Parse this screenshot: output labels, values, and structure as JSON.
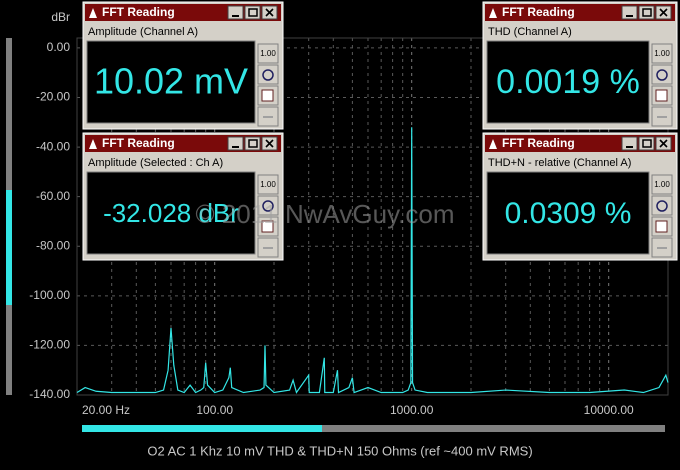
{
  "chart_data": {
    "type": "line",
    "title": "O2 AC 1 Khz 10 mV THD & THD+N 150 Ohms (ref ~400 mV RMS)",
    "y_label": "dBr",
    "x_scale": "log",
    "grid": true,
    "xlim": [
      20,
      20000
    ],
    "ylim": [
      -140,
      4
    ],
    "xticks": [
      {
        "value": 20,
        "label": "20.00 Hz"
      },
      {
        "value": 100,
        "label": "100.00"
      },
      {
        "value": 1000,
        "label": "1000.00"
      },
      {
        "value": 10000,
        "label": "10000.00"
      }
    ],
    "yticks": [
      {
        "value": 0,
        "label": "0.00"
      },
      {
        "value": -20,
        "label": "-20.00"
      },
      {
        "value": -40,
        "label": "-40.00"
      },
      {
        "value": -60,
        "label": "-60.00"
      },
      {
        "value": -80,
        "label": "-80.00"
      },
      {
        "value": -100,
        "label": "-100.00"
      },
      {
        "value": -120,
        "label": "-120.00"
      },
      {
        "value": -140,
        "label": "-140.00"
      }
    ],
    "x": [
      20,
      22,
      25,
      30,
      40,
      50,
      55,
      58,
      60,
      62,
      65,
      70,
      75,
      80,
      85,
      88,
      90,
      92,
      100,
      110,
      118,
      120,
      122,
      140,
      170,
      178,
      180,
      182,
      200,
      240,
      250,
      260,
      300,
      302,
      340,
      360,
      362,
      400,
      420,
      425,
      480,
      500,
      510,
      600,
      700,
      900,
      960,
      990,
      1000,
      1010,
      1040,
      1200,
      2000,
      3000,
      5000,
      8000,
      12000,
      15000,
      18000,
      19500,
      20000
    ],
    "series": [
      {
        "color": "#33e6e6",
        "values": [
          -139,
          -137,
          -138.5,
          -139,
          -139,
          -139,
          -138,
          -130,
          -113,
          -128,
          -138,
          -139,
          -136,
          -139,
          -138,
          -137,
          -127,
          -136,
          -139,
          -138,
          -133,
          -129,
          -137,
          -139,
          -138,
          -137,
          -120,
          -136,
          -139,
          -138,
          -134,
          -139,
          -132,
          -139,
          -139,
          -125,
          -139,
          -139,
          -130,
          -139,
          -137,
          -133,
          -139,
          -137,
          -139,
          -139,
          -138,
          -135,
          -32,
          -135,
          -138,
          -139,
          -139,
          -138,
          -139,
          -139,
          -138,
          -139,
          -137,
          -132,
          -135
        ]
      }
    ]
  },
  "window_title": "FFT Reading",
  "icon_label": "1.00",
  "watermark": "© 2011 NwAvGuy.com",
  "windows": [
    {
      "label": "Amplitude (Channel A)",
      "reading": "10.02 mV"
    },
    {
      "label": "Amplitude (Selected : Ch A)",
      "reading": "-32.028 dBr"
    },
    {
      "label": "THD (Channel A)",
      "reading": "0.0019 %"
    },
    {
      "label": "THD+N - relative (Channel A)",
      "reading": "0.0309 %"
    }
  ]
}
